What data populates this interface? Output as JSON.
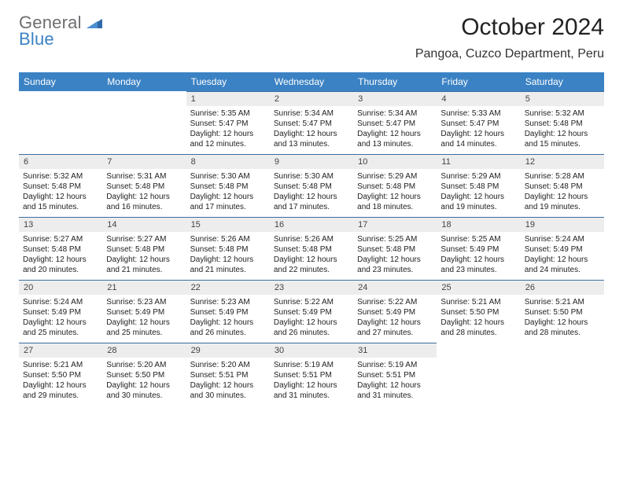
{
  "logo": {
    "top": "General",
    "bottom": "Blue"
  },
  "title": "October 2024",
  "location": "Pangoa, Cuzco Department, Peru",
  "colors": {
    "header_bg": "#3b82c4",
    "header_text": "#ffffff",
    "daynum_bg": "#ededed",
    "daynum_border": "#3b6ea0",
    "logo_gray": "#6d6e71",
    "logo_blue": "#3b82c4"
  },
  "weekdays": [
    "Sunday",
    "Monday",
    "Tuesday",
    "Wednesday",
    "Thursday",
    "Friday",
    "Saturday"
  ],
  "weeks": [
    [
      {
        "blank": true
      },
      {
        "blank": true
      },
      {
        "n": "1",
        "sunrise": "Sunrise: 5:35 AM",
        "sunset": "Sunset: 5:47 PM",
        "d1": "Daylight: 12 hours",
        "d2": "and 12 minutes."
      },
      {
        "n": "2",
        "sunrise": "Sunrise: 5:34 AM",
        "sunset": "Sunset: 5:47 PM",
        "d1": "Daylight: 12 hours",
        "d2": "and 13 minutes."
      },
      {
        "n": "3",
        "sunrise": "Sunrise: 5:34 AM",
        "sunset": "Sunset: 5:47 PM",
        "d1": "Daylight: 12 hours",
        "d2": "and 13 minutes."
      },
      {
        "n": "4",
        "sunrise": "Sunrise: 5:33 AM",
        "sunset": "Sunset: 5:47 PM",
        "d1": "Daylight: 12 hours",
        "d2": "and 14 minutes."
      },
      {
        "n": "5",
        "sunrise": "Sunrise: 5:32 AM",
        "sunset": "Sunset: 5:48 PM",
        "d1": "Daylight: 12 hours",
        "d2": "and 15 minutes."
      }
    ],
    [
      {
        "n": "6",
        "sunrise": "Sunrise: 5:32 AM",
        "sunset": "Sunset: 5:48 PM",
        "d1": "Daylight: 12 hours",
        "d2": "and 15 minutes."
      },
      {
        "n": "7",
        "sunrise": "Sunrise: 5:31 AM",
        "sunset": "Sunset: 5:48 PM",
        "d1": "Daylight: 12 hours",
        "d2": "and 16 minutes."
      },
      {
        "n": "8",
        "sunrise": "Sunrise: 5:30 AM",
        "sunset": "Sunset: 5:48 PM",
        "d1": "Daylight: 12 hours",
        "d2": "and 17 minutes."
      },
      {
        "n": "9",
        "sunrise": "Sunrise: 5:30 AM",
        "sunset": "Sunset: 5:48 PM",
        "d1": "Daylight: 12 hours",
        "d2": "and 17 minutes."
      },
      {
        "n": "10",
        "sunrise": "Sunrise: 5:29 AM",
        "sunset": "Sunset: 5:48 PM",
        "d1": "Daylight: 12 hours",
        "d2": "and 18 minutes."
      },
      {
        "n": "11",
        "sunrise": "Sunrise: 5:29 AM",
        "sunset": "Sunset: 5:48 PM",
        "d1": "Daylight: 12 hours",
        "d2": "and 19 minutes."
      },
      {
        "n": "12",
        "sunrise": "Sunrise: 5:28 AM",
        "sunset": "Sunset: 5:48 PM",
        "d1": "Daylight: 12 hours",
        "d2": "and 19 minutes."
      }
    ],
    [
      {
        "n": "13",
        "sunrise": "Sunrise: 5:27 AM",
        "sunset": "Sunset: 5:48 PM",
        "d1": "Daylight: 12 hours",
        "d2": "and 20 minutes."
      },
      {
        "n": "14",
        "sunrise": "Sunrise: 5:27 AM",
        "sunset": "Sunset: 5:48 PM",
        "d1": "Daylight: 12 hours",
        "d2": "and 21 minutes."
      },
      {
        "n": "15",
        "sunrise": "Sunrise: 5:26 AM",
        "sunset": "Sunset: 5:48 PM",
        "d1": "Daylight: 12 hours",
        "d2": "and 21 minutes."
      },
      {
        "n": "16",
        "sunrise": "Sunrise: 5:26 AM",
        "sunset": "Sunset: 5:48 PM",
        "d1": "Daylight: 12 hours",
        "d2": "and 22 minutes."
      },
      {
        "n": "17",
        "sunrise": "Sunrise: 5:25 AM",
        "sunset": "Sunset: 5:48 PM",
        "d1": "Daylight: 12 hours",
        "d2": "and 23 minutes."
      },
      {
        "n": "18",
        "sunrise": "Sunrise: 5:25 AM",
        "sunset": "Sunset: 5:49 PM",
        "d1": "Daylight: 12 hours",
        "d2": "and 23 minutes."
      },
      {
        "n": "19",
        "sunrise": "Sunrise: 5:24 AM",
        "sunset": "Sunset: 5:49 PM",
        "d1": "Daylight: 12 hours",
        "d2": "and 24 minutes."
      }
    ],
    [
      {
        "n": "20",
        "sunrise": "Sunrise: 5:24 AM",
        "sunset": "Sunset: 5:49 PM",
        "d1": "Daylight: 12 hours",
        "d2": "and 25 minutes."
      },
      {
        "n": "21",
        "sunrise": "Sunrise: 5:23 AM",
        "sunset": "Sunset: 5:49 PM",
        "d1": "Daylight: 12 hours",
        "d2": "and 25 minutes."
      },
      {
        "n": "22",
        "sunrise": "Sunrise: 5:23 AM",
        "sunset": "Sunset: 5:49 PM",
        "d1": "Daylight: 12 hours",
        "d2": "and 26 minutes."
      },
      {
        "n": "23",
        "sunrise": "Sunrise: 5:22 AM",
        "sunset": "Sunset: 5:49 PM",
        "d1": "Daylight: 12 hours",
        "d2": "and 26 minutes."
      },
      {
        "n": "24",
        "sunrise": "Sunrise: 5:22 AM",
        "sunset": "Sunset: 5:49 PM",
        "d1": "Daylight: 12 hours",
        "d2": "and 27 minutes."
      },
      {
        "n": "25",
        "sunrise": "Sunrise: 5:21 AM",
        "sunset": "Sunset: 5:50 PM",
        "d1": "Daylight: 12 hours",
        "d2": "and 28 minutes."
      },
      {
        "n": "26",
        "sunrise": "Sunrise: 5:21 AM",
        "sunset": "Sunset: 5:50 PM",
        "d1": "Daylight: 12 hours",
        "d2": "and 28 minutes."
      }
    ],
    [
      {
        "n": "27",
        "sunrise": "Sunrise: 5:21 AM",
        "sunset": "Sunset: 5:50 PM",
        "d1": "Daylight: 12 hours",
        "d2": "and 29 minutes."
      },
      {
        "n": "28",
        "sunrise": "Sunrise: 5:20 AM",
        "sunset": "Sunset: 5:50 PM",
        "d1": "Daylight: 12 hours",
        "d2": "and 30 minutes."
      },
      {
        "n": "29",
        "sunrise": "Sunrise: 5:20 AM",
        "sunset": "Sunset: 5:51 PM",
        "d1": "Daylight: 12 hours",
        "d2": "and 30 minutes."
      },
      {
        "n": "30",
        "sunrise": "Sunrise: 5:19 AM",
        "sunset": "Sunset: 5:51 PM",
        "d1": "Daylight: 12 hours",
        "d2": "and 31 minutes."
      },
      {
        "n": "31",
        "sunrise": "Sunrise: 5:19 AM",
        "sunset": "Sunset: 5:51 PM",
        "d1": "Daylight: 12 hours",
        "d2": "and 31 minutes."
      },
      {
        "blank": true
      },
      {
        "blank": true
      }
    ]
  ]
}
